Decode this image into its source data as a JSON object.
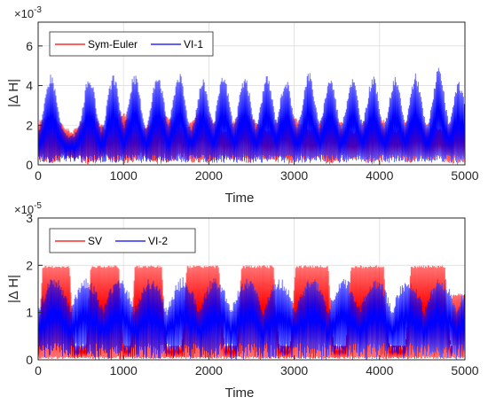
{
  "chart_data": [
    {
      "type": "line",
      "xlabel": "Time",
      "ylabel": "|Δ H|",
      "xlim": [
        0,
        5000
      ],
      "ylim": [
        0,
        7.2
      ],
      "xticks": [
        0,
        1000,
        2000,
        3000,
        4000,
        5000
      ],
      "yticks": [
        0,
        2,
        4,
        6
      ],
      "yscale_exponent": "-3",
      "grid": true,
      "legend_position": "top-left",
      "series": [
        {
          "name": "Sym-Euler",
          "color": "#ff0000",
          "pattern": "dense-oscillation",
          "envelope_x": [
            0,
            100,
            200,
            300,
            400,
            500,
            600,
            700,
            800,
            900,
            1000,
            1100,
            1200,
            1300,
            1400,
            1500,
            1600,
            1700,
            1800,
            1900,
            2000,
            2100,
            2200,
            2300,
            2400,
            2500,
            2600,
            2700,
            2800,
            2900,
            3000,
            3100,
            3200,
            3300,
            3400,
            3500,
            3600,
            3700,
            3800,
            3900,
            4000,
            4100,
            4200,
            4300,
            4400,
            4500,
            4600,
            4700,
            4800,
            4900,
            5000
          ],
          "upper": [
            2.2,
            2.6,
            2.4,
            2.0,
            1.7,
            2.2,
            2.7,
            2.3,
            1.8,
            2.5,
            2.7,
            2.3,
            1.9,
            2.1,
            2.5,
            2.6,
            2.2,
            1.8,
            2.4,
            2.8,
            2.5,
            2.0,
            1.7,
            2.3,
            2.7,
            2.5,
            2.0,
            1.8,
            2.3,
            2.6,
            2.5,
            2.1,
            1.8,
            2.3,
            2.7,
            2.4,
            2.0,
            1.7,
            2.2,
            2.6,
            2.5,
            2.1,
            1.7,
            2.2,
            2.5,
            2.3,
            2.0,
            1.8,
            2.1,
            2.5,
            2.5
          ],
          "lower": [
            0.1,
            0.0,
            0.1,
            0.2,
            0.3,
            0.1,
            0.0,
            0.1,
            0.3,
            0.1,
            0.0,
            0.1,
            0.3,
            0.2,
            0.0,
            0.1,
            0.2,
            0.3,
            0.1,
            0.0,
            0.1,
            0.2,
            0.3,
            0.1,
            0.0,
            0.1,
            0.2,
            0.3,
            0.1,
            0.0,
            0.1,
            0.2,
            0.3,
            0.1,
            0.0,
            0.1,
            0.2,
            0.3,
            0.1,
            0.0,
            0.1,
            0.2,
            0.3,
            0.1,
            0.0,
            0.1,
            0.2,
            0.3,
            0.1,
            0.0,
            0.1
          ]
        },
        {
          "name": "VI-1",
          "color": "#0000ff",
          "pattern": "dense-oscillation",
          "peak_x": [
            150,
            600,
            880,
            1130,
            1400,
            1650,
            1930,
            2170,
            2420,
            2680,
            2900,
            3170,
            3420,
            3680,
            3920,
            4180,
            4420,
            4690,
            4930
          ],
          "peak_values": [
            4.65,
            4.55,
            4.55,
            4.6,
            4.75,
            4.7,
            4.35,
            4.55,
            4.5,
            4.5,
            4.4,
            4.75,
            4.5,
            4.45,
            4.5,
            4.45,
            4.65,
            4.9,
            4.2
          ],
          "baseline_upper": 1.5,
          "baseline_lower": 0.1
        }
      ]
    },
    {
      "type": "line",
      "xlabel": "Time",
      "ylabel": "|Δ H|",
      "xlim": [
        0,
        5000
      ],
      "ylim": [
        0,
        3
      ],
      "xticks": [
        0,
        1000,
        2000,
        3000,
        4000,
        5000
      ],
      "yticks": [
        0,
        1,
        2,
        3
      ],
      "yscale_exponent": "-5",
      "grid": true,
      "legend_position": "top-left",
      "series": [
        {
          "name": "SV",
          "color": "#ff0000",
          "pattern": "dense-oscillation",
          "hump_ranges": [
            [
              0,
              420
            ],
            [
              560,
              1000
            ],
            [
              1080,
              1500
            ],
            [
              1680,
              2180
            ],
            [
              2320,
              2820
            ],
            [
              2950,
              3460
            ],
            [
              3600,
              4110
            ],
            [
              4300,
              4830
            ]
          ],
          "hump_value": 2.0,
          "dip_value": 0.3,
          "end_value": 1.4
        },
        {
          "name": "VI-2",
          "color": "#0000ff",
          "pattern": "dense-oscillation",
          "max_value": 1.75,
          "min_value": 0.0
        }
      ]
    }
  ]
}
